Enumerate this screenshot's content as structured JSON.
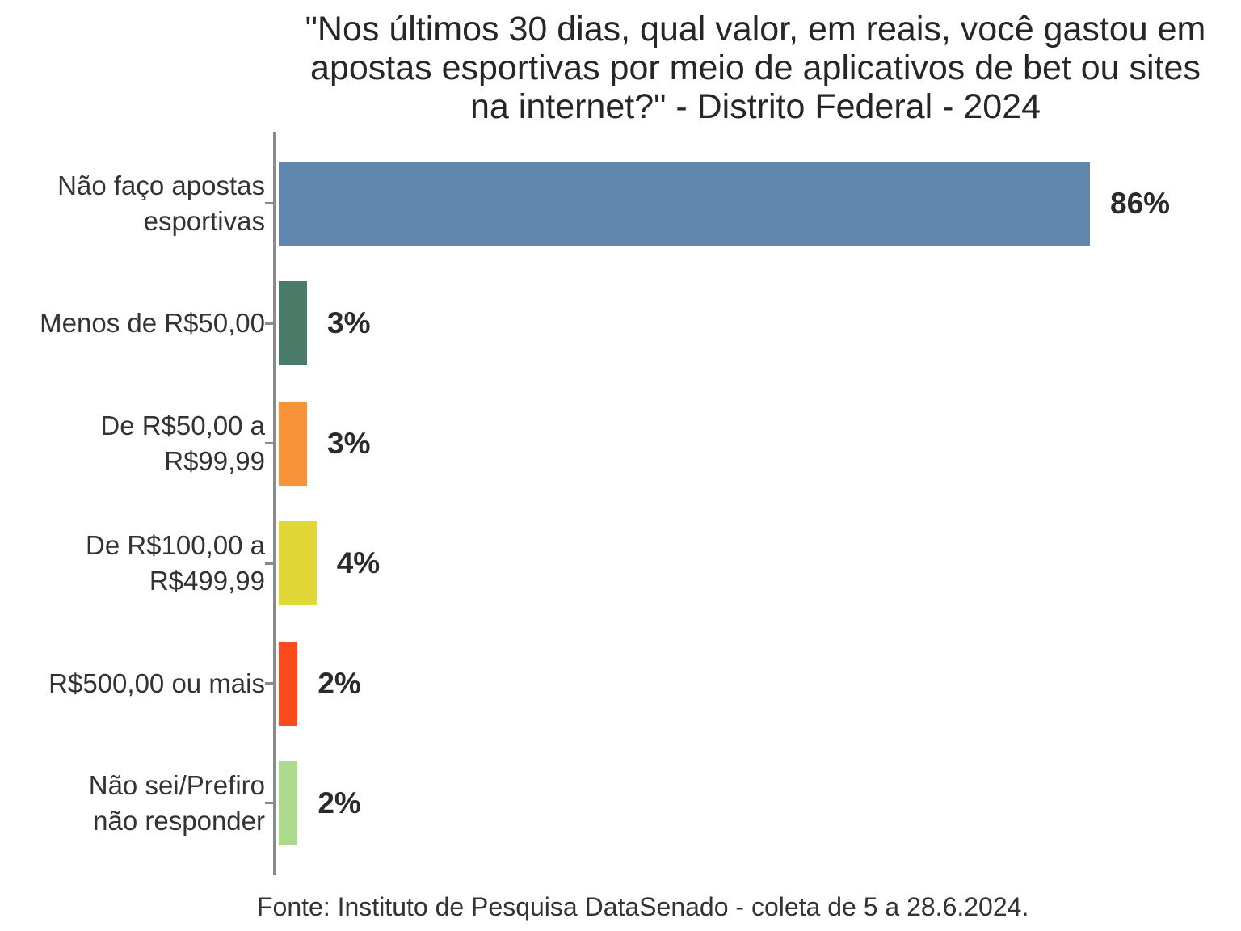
{
  "title": {
    "lines": [
      "\"Nos últimos 30 dias, qual valor, em reais, você gastou em",
      "apostas esportivas por meio de aplicativos de bet ou sites",
      "na internet?\" - Distrito Federal - 2024"
    ]
  },
  "source": {
    "text": "Fonte: Instituto de Pesquisa DataSenado - coleta de 5 a 28.6.2024."
  },
  "chart_data": {
    "type": "bar",
    "orientation": "horizontal",
    "title": "\"Nos últimos 30 dias, qual valor, em reais, você gastou em apostas esportivas por meio de aplicativos de bet ou sites na internet?\" - Distrito Federal - 2024",
    "categories": [
      "Não faço apostas esportivas",
      "Menos de R$50,00",
      "De R$50,00 a R$99,99",
      "De R$100,00 a R$499,99",
      "R$500,00 ou mais",
      "Não sei/Prefiro não responder"
    ],
    "category_label_lines": [
      [
        "Não faço apostas",
        "esportivas"
      ],
      [
        "Menos de R$50,00"
      ],
      [
        "De R$50,00 a",
        "R$99,99"
      ],
      [
        "De R$100,00 a",
        "R$499,99"
      ],
      [
        "R$500,00 ou mais"
      ],
      [
        "Não sei/Prefiro",
        "não responder"
      ]
    ],
    "values": [
      86,
      3,
      3,
      4,
      2,
      2
    ],
    "value_labels": [
      "86%",
      "3%",
      "3%",
      "4%",
      "2%",
      "2%"
    ],
    "colors": [
      "#6287AF",
      "#4A7A68",
      "#F99339",
      "#E1D837",
      "#FB4A1E",
      "#ADD98D"
    ],
    "unit": "%",
    "xlim": [
      0,
      86
    ],
    "grid": false,
    "legend": "none",
    "axis_color": "#8a8a8a",
    "source": "Fonte: Instituto de Pesquisa DataSenado - coleta de 5 a 28.6.2024."
  }
}
